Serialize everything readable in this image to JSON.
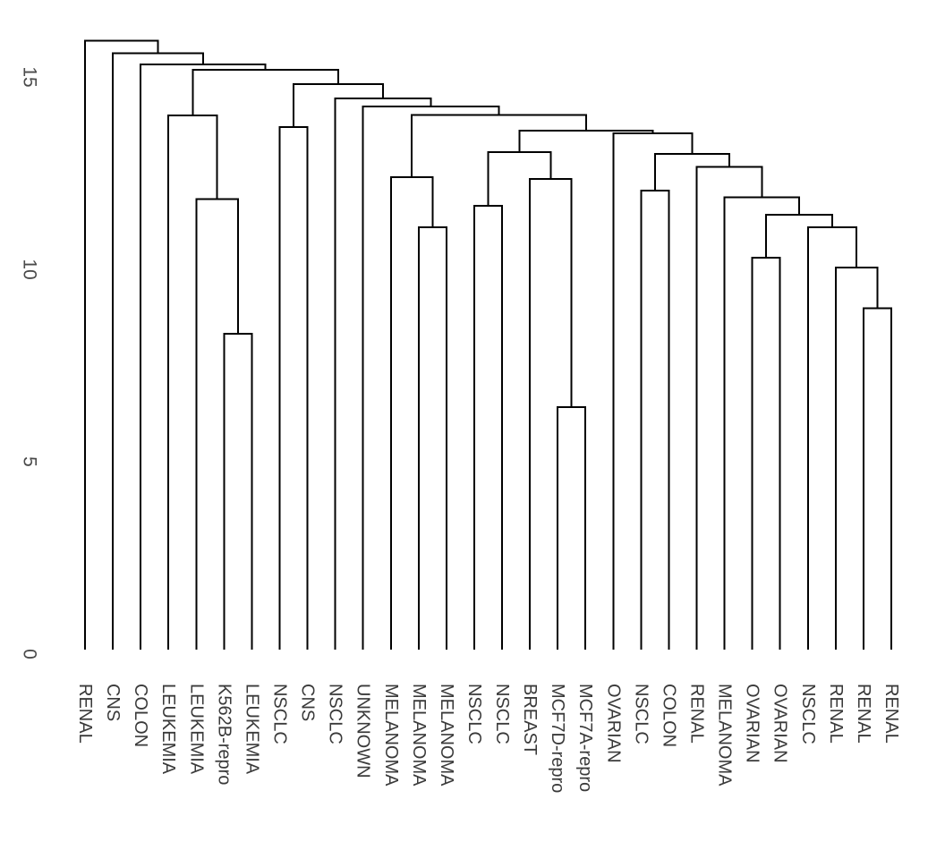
{
  "figure": {
    "background": "#ffffff",
    "line_color": "#000000",
    "label_color": "#3a3a3a",
    "tick_color": "#4a4a4a"
  },
  "chart_data": {
    "type": "dendrogram",
    "orientation": "root-top",
    "title": "",
    "xlabel": "",
    "ylabel": "",
    "ylim": [
      0,
      16.2
    ],
    "yticks": [
      0,
      5,
      10,
      15
    ],
    "grid": false,
    "legend": false,
    "leaves": [
      "RENAL",
      "CNS",
      "COLON",
      "LEUKEMIA",
      "LEUKEMIA",
      "K562B-repro",
      "LEUKEMIA",
      "NSCLC",
      "CNS",
      "NSCLC",
      "UNKNOWN",
      "MELANOMA",
      "MELANOMA",
      "MELANOMA",
      "NSCLC",
      "NSCLC",
      "BREAST",
      "MCF7D-repro",
      "MCF7A-repro",
      "OVARIAN",
      "NSCLC",
      "COLON",
      "RENAL",
      "MELANOMA",
      "OVARIAN",
      "OVARIAN",
      "NSCLC",
      "RENAL",
      "RENAL",
      "RENAL"
    ],
    "tree": {
      "h": 15.94,
      "c": [
        0,
        {
          "h": 15.62,
          "c": [
            1,
            {
              "h": 15.33,
              "c": [
                2,
                {
                  "h": 15.19,
                  "c": [
                    {
                      "h": 14.0,
                      "c": [
                        3,
                        {
                          "h": 11.82,
                          "c": [
                            4,
                            {
                              "h": 8.32,
                              "c": [
                                5,
                                6
                              ]
                            }
                          ]
                        }
                      ]
                    },
                    {
                      "h": 14.81,
                      "c": [
                        {
                          "h": 13.7,
                          "c": [
                            7,
                            8
                          ]
                        },
                        {
                          "h": 14.44,
                          "c": [
                            9,
                            {
                              "h": 14.23,
                              "c": [
                                10,
                                {
                                  "h": 14.01,
                                  "c": [
                                    {
                                      "h": 12.39,
                                      "c": [
                                        11,
                                        {
                                          "h": 11.09,
                                          "c": [
                                            12,
                                            13
                                          ]
                                        }
                                      ]
                                    },
                                    {
                                      "h": 13.6,
                                      "c": [
                                        {
                                          "h": 13.05,
                                          "c": [
                                            {
                                              "h": 11.65,
                                              "c": [
                                                14,
                                                15
                                              ]
                                            },
                                            {
                                              "h": 12.35,
                                              "c": [
                                                16,
                                                {
                                                  "h": 6.42,
                                                  "c": [
                                                    17,
                                                    18
                                                  ]
                                                }
                                              ]
                                            }
                                          ]
                                        },
                                        {
                                          "h": 13.53,
                                          "c": [
                                            19,
                                            {
                                              "h": 13.0,
                                              "c": [
                                                {
                                                  "h": 12.05,
                                                  "c": [
                                                    20,
                                                    21
                                                  ]
                                                },
                                                {
                                                  "h": 12.66,
                                                  "c": [
                                                    22,
                                                    {
                                                      "h": 11.87,
                                                      "c": [
                                                        23,
                                                        {
                                                          "h": 11.42,
                                                          "c": [
                                                            {
                                                              "h": 10.3,
                                                              "c": [
                                                                24,
                                                                25
                                                              ]
                                                            },
                                                            {
                                                              "h": 11.09,
                                                              "c": [
                                                                26,
                                                                {
                                                                  "h": 10.05,
                                                                  "c": [
                                                                    27,
                                                                    {
                                                                      "h": 8.99,
                                                                      "c": [
                                                                        28,
                                                                        29
                                                                      ]
                                                                    }
                                                                  ]
                                                                }
                                                              ]
                                                            }
                                                          ]
                                                        }
                                                      ]
                                                    }
                                                  ]
                                                }
                                              ]
                                            }
                                          ]
                                        }
                                      ]
                                    }
                                  ]
                                }
                              ]
                            }
                          ]
                        }
                      ]
                    }
                  ]
                }
              ]
            }
          ]
        }
      ]
    }
  }
}
